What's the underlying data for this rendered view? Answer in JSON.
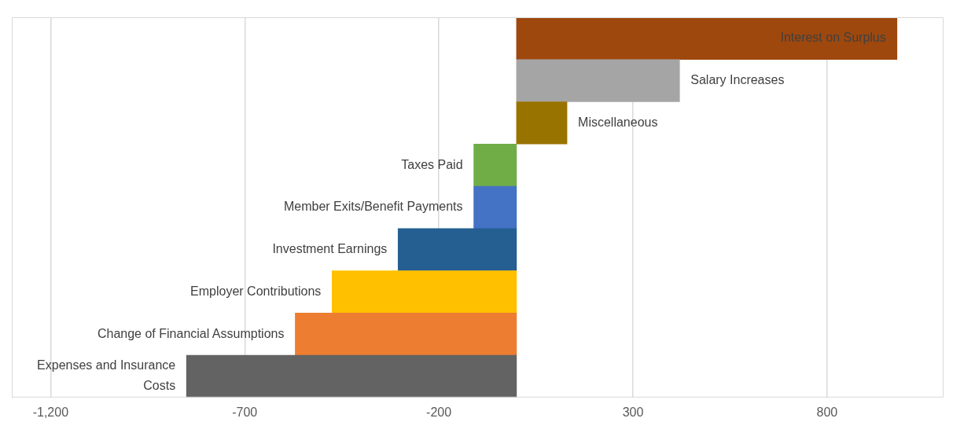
{
  "chart_data": {
    "type": "bar",
    "orientation": "horizontal",
    "categories": [
      "Interest on Surplus",
      "Salary Increases",
      "Miscellaneous",
      "Taxes Paid",
      "Member Exits/Benefit Payments",
      "Investment Earnings",
      "Employer Contributions",
      "Change of Financial Assumptions",
      "Expenses and Insurance Costs"
    ],
    "values": [
      980,
      420,
      130,
      -110,
      -110,
      -305,
      -475,
      -570,
      -850
    ],
    "colors": [
      "#9e480e",
      "#a5a5a5",
      "#997300",
      "#70ad47",
      "#4472c4",
      "#255e91",
      "#ffc000",
      "#ed7d31",
      "#636363"
    ],
    "xlim": [
      -1300,
      1100
    ],
    "xticks": [
      {
        "value": -1200,
        "label": "-1,200"
      },
      -700,
      -200,
      300,
      800
    ],
    "grid": "x",
    "tick_labels": "x"
  }
}
